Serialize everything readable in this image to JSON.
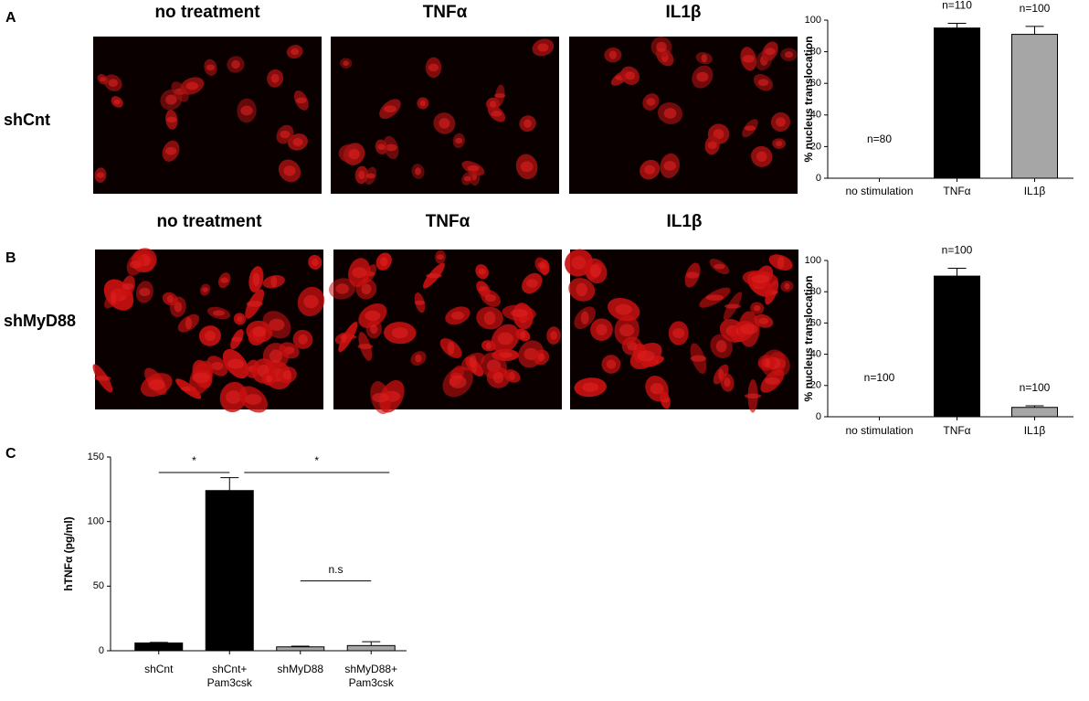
{
  "figure": {
    "panels": [
      {
        "label": "A",
        "row_label": "shCnt",
        "columns": [
          "no treatment",
          "TNFα",
          "IL1β"
        ]
      },
      {
        "label": "B",
        "row_label": "shMyD88",
        "columns": [
          "no treatment",
          "TNFα",
          "IL1β"
        ]
      }
    ]
  },
  "chart_data": [
    {
      "type": "bar",
      "ylabel": "% nucleus translocation",
      "categories": [
        "no stimulation",
        "TNFα",
        "IL1β"
      ],
      "values": [
        0,
        95,
        91
      ],
      "errors": [
        0,
        3,
        5
      ],
      "annotations": [
        "n=80",
        "n=110",
        "n=100"
      ],
      "colors": [
        "#000000",
        "#000000",
        "#a6a6a6"
      ],
      "ylim": [
        0,
        100
      ],
      "yticks": [
        0,
        20,
        40,
        60,
        80,
        100
      ]
    },
    {
      "type": "bar",
      "ylabel": "% nucleus translocation",
      "categories": [
        "no stimulation",
        "TNFα",
        "IL1β"
      ],
      "values": [
        0,
        90,
        6
      ],
      "errors": [
        0,
        5,
        1
      ],
      "annotations": [
        "n=100",
        "n=100",
        "n=100"
      ],
      "colors": [
        "#000000",
        "#000000",
        "#a6a6a6"
      ],
      "ylim": [
        0,
        100
      ],
      "yticks": [
        0,
        20,
        40,
        60,
        80,
        100
      ]
    },
    {
      "type": "bar",
      "panel_label": "C",
      "ylabel": "hTNFα (pg/ml)",
      "categories": [
        "shCnt",
        "shCnt+\nPam3csk",
        "shMyD88",
        "shMyD88+\nPam3csk"
      ],
      "values": [
        6,
        124,
        3,
        4
      ],
      "errors": [
        0.5,
        10,
        0.5,
        3
      ],
      "colors": [
        "#000000",
        "#000000",
        "#a6a6a6",
        "#a6a6a6"
      ],
      "ylim": [
        0,
        150
      ],
      "yticks": [
        0,
        50,
        100,
        150
      ],
      "significance": [
        {
          "from": 0,
          "to": 1,
          "y": 138,
          "label": "*"
        },
        {
          "from": 1,
          "to": 3,
          "y": 138,
          "label": "*"
        },
        {
          "from": 2,
          "to": 3,
          "y": 54,
          "label": "n.s"
        }
      ]
    }
  ]
}
